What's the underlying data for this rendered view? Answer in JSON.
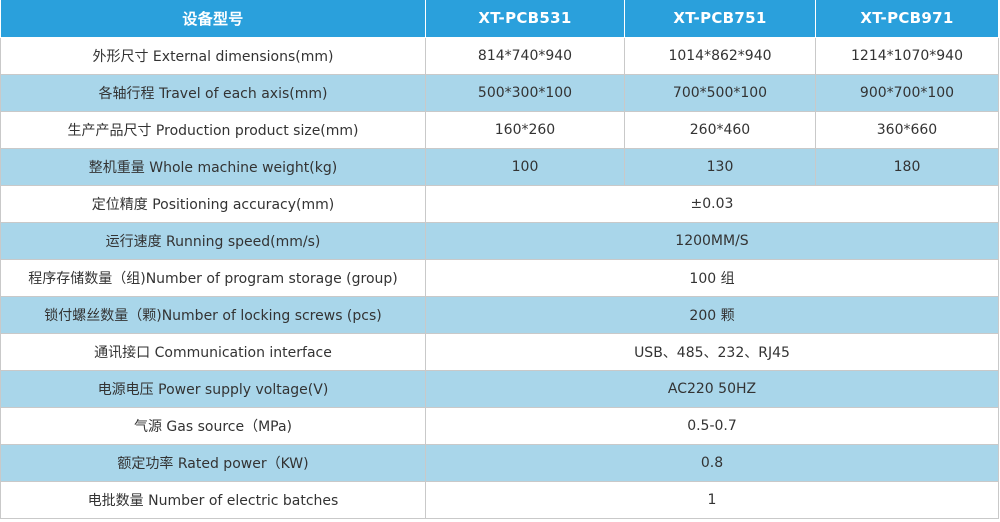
{
  "table": {
    "headers": [
      "设备型号",
      "XT-PCB531",
      "XT-PCB751",
      "XT-PCB971"
    ],
    "rows": [
      {
        "label": "外形尺寸 External dimensions(mm)",
        "values": [
          "814*740*940",
          "1014*862*940",
          "1214*1070*940"
        ]
      },
      {
        "label": "各轴行程 Travel of each axis(mm)",
        "values": [
          "500*300*100",
          "700*500*100",
          "900*700*100"
        ]
      },
      {
        "label": "生产产品尺寸 Production product size(mm)",
        "values": [
          "160*260",
          "260*460",
          "360*660"
        ]
      },
      {
        "label": "整机重量 Whole machine weight(kg)",
        "values": [
          "100",
          "130",
          "180"
        ]
      },
      {
        "label": "定位精度 Positioning accuracy(mm)",
        "value": "±0.03"
      },
      {
        "label": "运行速度 Running speed(mm/s)",
        "value": "1200MM/S"
      },
      {
        "label": "程序存储数量（组)Number of program storage (group)",
        "value": "100 组"
      },
      {
        "label": "锁付螺丝数量（颗)Number of locking screws (pcs)",
        "value": "200 颗"
      },
      {
        "label": "通讯接口 Communication interface",
        "value": "USB、485、232、RJ45"
      },
      {
        "label": "电源电压 Power supply voltage(V)",
        "value": "AC220 50HZ"
      },
      {
        "label": "气源 Gas source（MPa)",
        "value": "0.5-0.7"
      },
      {
        "label": "额定功率 Rated power（KW)",
        "value": "0.8"
      },
      {
        "label": "电批数量 Number of electric batches",
        "value": "1"
      }
    ]
  },
  "colors": {
    "header_bg": "#2aa0dc",
    "alt_row_bg": "#a9d6ea",
    "plain_row_bg": "#ffffff",
    "text": "#333333"
  }
}
